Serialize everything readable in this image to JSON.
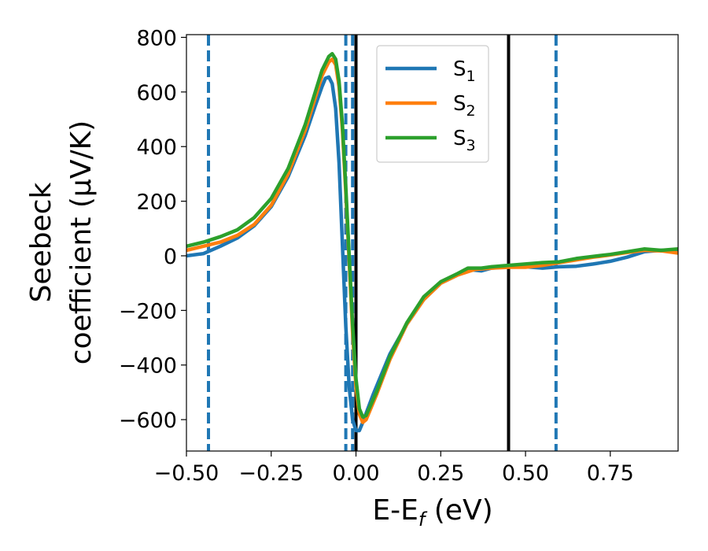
{
  "chart_data": {
    "type": "line",
    "xlabel": "E-E_f (eV)",
    "xlabel_parts": {
      "main": "E-E",
      "sub": "f",
      "rest": " (eV)"
    },
    "ylabel_line1": "Seebeck",
    "ylabel_line2": "coefficient  (μV/K)",
    "xlim": [
      -0.5,
      0.95
    ],
    "ylim": [
      -715,
      810
    ],
    "x_ticks": [
      -0.5,
      -0.25,
      0.0,
      0.25,
      0.5,
      0.75
    ],
    "x_tick_labels": [
      "−0.50",
      "−0.25",
      "0.00",
      "0.25",
      "0.50",
      "0.75"
    ],
    "y_ticks": [
      -600,
      -400,
      -200,
      0,
      200,
      400,
      600,
      800
    ],
    "y_tick_labels": [
      "−600",
      "−400",
      "−200",
      "0",
      "200",
      "400",
      "600",
      "800"
    ],
    "grid": false,
    "legend_position": "top-center",
    "series": [
      {
        "name": "S1",
        "label_main": "S",
        "label_sub": "1",
        "color": "#1f77b4",
        "points": [
          [
            -0.5,
            0
          ],
          [
            -0.45,
            8
          ],
          [
            -0.4,
            35
          ],
          [
            -0.35,
            65
          ],
          [
            -0.3,
            110
          ],
          [
            -0.25,
            180
          ],
          [
            -0.2,
            290
          ],
          [
            -0.15,
            440
          ],
          [
            -0.12,
            550
          ],
          [
            -0.1,
            620
          ],
          [
            -0.09,
            650
          ],
          [
            -0.08,
            655
          ],
          [
            -0.07,
            630
          ],
          [
            -0.06,
            540
          ],
          [
            -0.05,
            340
          ],
          [
            -0.04,
            40
          ],
          [
            -0.03,
            -260
          ],
          [
            -0.02,
            -480
          ],
          [
            -0.01,
            -600
          ],
          [
            0.0,
            -640
          ],
          [
            0.01,
            -640
          ],
          [
            0.02,
            -610
          ],
          [
            0.05,
            -510
          ],
          [
            0.1,
            -360
          ],
          [
            0.15,
            -250
          ],
          [
            0.2,
            -160
          ],
          [
            0.25,
            -100
          ],
          [
            0.3,
            -70
          ],
          [
            0.33,
            -50
          ],
          [
            0.37,
            -55
          ],
          [
            0.4,
            -45
          ],
          [
            0.45,
            -40
          ],
          [
            0.5,
            -40
          ],
          [
            0.55,
            -45
          ],
          [
            0.6,
            -40
          ],
          [
            0.65,
            -38
          ],
          [
            0.7,
            -30
          ],
          [
            0.75,
            -20
          ],
          [
            0.8,
            -5
          ],
          [
            0.85,
            15
          ],
          [
            0.9,
            20
          ],
          [
            0.95,
            20
          ]
        ]
      },
      {
        "name": "S2",
        "label_main": "S",
        "label_sub": "2",
        "color": "#ff7f0e",
        "points": [
          [
            -0.5,
            20
          ],
          [
            -0.45,
            35
          ],
          [
            -0.4,
            50
          ],
          [
            -0.35,
            75
          ],
          [
            -0.3,
            115
          ],
          [
            -0.25,
            185
          ],
          [
            -0.2,
            300
          ],
          [
            -0.15,
            460
          ],
          [
            -0.12,
            580
          ],
          [
            -0.1,
            660
          ],
          [
            -0.08,
            710
          ],
          [
            -0.07,
            720
          ],
          [
            -0.06,
            700
          ],
          [
            -0.05,
            620
          ],
          [
            -0.04,
            460
          ],
          [
            -0.03,
            230
          ],
          [
            -0.02,
            -20
          ],
          [
            -0.01,
            -280
          ],
          [
            0.0,
            -480
          ],
          [
            0.01,
            -580
          ],
          [
            0.02,
            -610
          ],
          [
            0.03,
            -600
          ],
          [
            0.06,
            -510
          ],
          [
            0.1,
            -380
          ],
          [
            0.15,
            -250
          ],
          [
            0.2,
            -160
          ],
          [
            0.25,
            -100
          ],
          [
            0.3,
            -70
          ],
          [
            0.35,
            -50
          ],
          [
            0.4,
            -45
          ],
          [
            0.45,
            -42
          ],
          [
            0.5,
            -42
          ],
          [
            0.55,
            -35
          ],
          [
            0.6,
            -25
          ],
          [
            0.65,
            -15
          ],
          [
            0.7,
            -5
          ],
          [
            0.75,
            3
          ],
          [
            0.8,
            12
          ],
          [
            0.85,
            20
          ],
          [
            0.9,
            18
          ],
          [
            0.95,
            10
          ]
        ]
      },
      {
        "name": "S3",
        "label_main": "S",
        "label_sub": "3",
        "color": "#2ca02c",
        "points": [
          [
            -0.5,
            35
          ],
          [
            -0.45,
            50
          ],
          [
            -0.4,
            70
          ],
          [
            -0.35,
            95
          ],
          [
            -0.3,
            140
          ],
          [
            -0.25,
            210
          ],
          [
            -0.2,
            320
          ],
          [
            -0.15,
            480
          ],
          [
            -0.12,
            600
          ],
          [
            -0.1,
            680
          ],
          [
            -0.08,
            730
          ],
          [
            -0.07,
            740
          ],
          [
            -0.06,
            720
          ],
          [
            -0.05,
            640
          ],
          [
            -0.04,
            480
          ],
          [
            -0.03,
            250
          ],
          [
            -0.02,
            0
          ],
          [
            -0.01,
            -250
          ],
          [
            0.0,
            -450
          ],
          [
            0.01,
            -560
          ],
          [
            0.02,
            -590
          ],
          [
            0.03,
            -585
          ],
          [
            0.06,
            -500
          ],
          [
            0.1,
            -370
          ],
          [
            0.15,
            -245
          ],
          [
            0.2,
            -150
          ],
          [
            0.25,
            -95
          ],
          [
            0.3,
            -65
          ],
          [
            0.33,
            -45
          ],
          [
            0.37,
            -45
          ],
          [
            0.4,
            -40
          ],
          [
            0.45,
            -35
          ],
          [
            0.5,
            -30
          ],
          [
            0.55,
            -25
          ],
          [
            0.6,
            -22
          ],
          [
            0.65,
            -10
          ],
          [
            0.7,
            -2
          ],
          [
            0.75,
            5
          ],
          [
            0.8,
            15
          ],
          [
            0.85,
            25
          ],
          [
            0.9,
            20
          ],
          [
            0.95,
            25
          ]
        ]
      }
    ],
    "vlines": [
      {
        "x": -0.435,
        "style": "dashed",
        "color": "#1f77b4"
      },
      {
        "x": -0.03,
        "style": "dashed",
        "color": "#1f77b4"
      },
      {
        "x": -0.01,
        "style": "dashed",
        "color": "#1f77b4"
      },
      {
        "x": 0.59,
        "style": "dashed",
        "color": "#1f77b4"
      },
      {
        "x": 0.0,
        "style": "solid",
        "color": "#000000"
      },
      {
        "x": 0.45,
        "style": "solid",
        "color": "#000000"
      }
    ]
  }
}
